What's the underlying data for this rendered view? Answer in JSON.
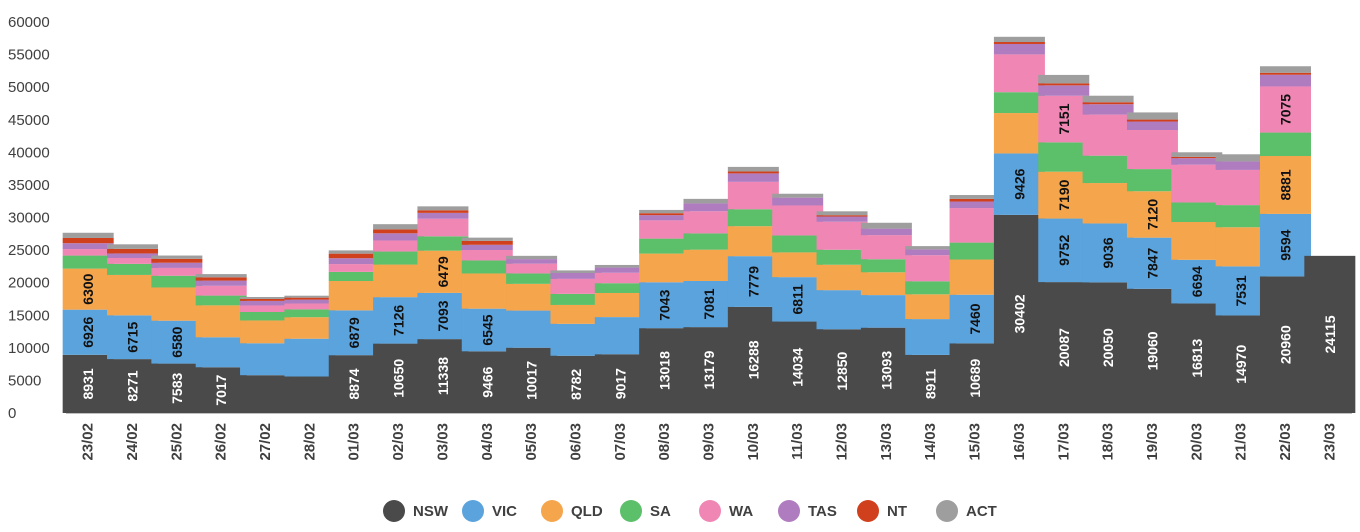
{
  "chart_data": {
    "type": "bar",
    "stacked": true,
    "ylim": [
      0,
      60000
    ],
    "yticks": [
      0,
      5000,
      10000,
      15000,
      20000,
      25000,
      30000,
      35000,
      40000,
      45000,
      50000,
      55000,
      60000
    ],
    "grid": false,
    "legend_position": "bottom",
    "categories": [
      "23/02",
      "24/02",
      "25/02",
      "26/02",
      "27/02",
      "28/02",
      "01/03",
      "02/03",
      "03/03",
      "04/03",
      "05/03",
      "06/03",
      "07/03",
      "08/03",
      "09/03",
      "10/03",
      "11/03",
      "12/03",
      "13/03",
      "14/03",
      "15/03",
      "16/03",
      "17/03",
      "18/03",
      "19/03",
      "20/03",
      "21/03",
      "22/03",
      "23/03"
    ],
    "series": [
      {
        "name": "NSW",
        "color": "#4a4a4a",
        "label_color": "#ffffff",
        "values": [
          8931,
          8271,
          7583,
          7017,
          5800,
          5600,
          8874,
          10650,
          11338,
          9466,
          10017,
          8782,
          9017,
          13018,
          13179,
          16288,
          14034,
          12850,
          13093,
          8911,
          10689,
          30402,
          20087,
          20050,
          19060,
          16813,
          14970,
          20960,
          24115
        ],
        "labels": [
          8931,
          8271,
          7583,
          7017,
          null,
          null,
          8874,
          10650,
          11338,
          9466,
          10017,
          8782,
          9017,
          13018,
          13179,
          16288,
          14034,
          12850,
          13093,
          8911,
          10689,
          30402,
          20087,
          20050,
          19060,
          16813,
          14970,
          20960,
          24115
        ]
      },
      {
        "name": "VIC",
        "color": "#5ba3dc",
        "label_color": "#111111",
        "values": [
          6926,
          6715,
          6580,
          4600,
          4900,
          5800,
          6879,
          7126,
          7093,
          6545,
          5700,
          4900,
          5700,
          7043,
          7081,
          7779,
          6811,
          6000,
          5000,
          5500,
          7460,
          9426,
          9752,
          9036,
          7847,
          6694,
          7531,
          9594,
          0
        ],
        "labels": [
          6926,
          6715,
          6580,
          null,
          null,
          null,
          6879,
          7126,
          7093,
          6545,
          null,
          null,
          null,
          7043,
          7081,
          7779,
          6811,
          null,
          null,
          null,
          7460,
          9426,
          9752,
          9036,
          7847,
          6694,
          7531,
          9594,
          null
        ]
      },
      {
        "name": "QLD",
        "color": "#f5a54c",
        "label_color": "#111111",
        "values": [
          6300,
          6200,
          5100,
          4900,
          3500,
          3300,
          4500,
          5000,
          6479,
          5400,
          4100,
          2900,
          3700,
          4400,
          4800,
          4600,
          3800,
          3900,
          3500,
          3800,
          5400,
          6200,
          7190,
          6200,
          7120,
          5800,
          6000,
          8881,
          0
        ],
        "labels": [
          6300,
          null,
          null,
          null,
          null,
          null,
          null,
          null,
          6479,
          null,
          null,
          null,
          null,
          null,
          null,
          null,
          null,
          null,
          null,
          null,
          null,
          null,
          7190,
          null,
          7120,
          null,
          null,
          8881,
          null
        ]
      },
      {
        "name": "SA",
        "color": "#5cbf6a",
        "label_color": "#111111",
        "values": [
          2000,
          1700,
          1800,
          1500,
          1300,
          1200,
          1400,
          2000,
          2200,
          2000,
          1600,
          1700,
          1500,
          2300,
          2500,
          2600,
          2600,
          2300,
          2000,
          2000,
          2600,
          3200,
          4500,
          4200,
          3400,
          3000,
          3400,
          3600,
          0
        ],
        "labels": [
          null,
          null,
          null,
          null,
          null,
          null,
          null,
          null,
          null,
          null,
          null,
          null,
          null,
          null,
          null,
          null,
          null,
          null,
          null,
          null,
          null,
          null,
          null,
          null,
          null,
          null,
          null,
          null,
          null
        ]
      },
      {
        "name": "WA",
        "color": "#f086b3",
        "label_color": "#111111",
        "values": [
          1000,
          900,
          1200,
          1500,
          1000,
          900,
          1200,
          1700,
          2700,
          1600,
          1500,
          2300,
          1600,
          2800,
          3400,
          4200,
          4600,
          4300,
          3700,
          4000,
          5300,
          5800,
          7151,
          6300,
          6000,
          5800,
          5400,
          7075,
          0
        ],
        "labels": [
          null,
          null,
          null,
          null,
          null,
          null,
          null,
          null,
          null,
          null,
          null,
          null,
          null,
          null,
          null,
          null,
          null,
          null,
          null,
          null,
          null,
          null,
          7151,
          null,
          null,
          null,
          null,
          7075,
          null
        ]
      },
      {
        "name": "TAS",
        "color": "#b07cc0",
        "label_color": "#111111",
        "values": [
          900,
          700,
          800,
          800,
          700,
          600,
          900,
          1100,
          900,
          800,
          700,
          900,
          800,
          800,
          1200,
          1300,
          1200,
          800,
          1000,
          900,
          1000,
          1600,
          1600,
          1600,
          1300,
          1000,
          1300,
          1800,
          0
        ],
        "labels": [
          null,
          null,
          null,
          null,
          null,
          null,
          null,
          null,
          null,
          null,
          null,
          null,
          null,
          null,
          null,
          null,
          null,
          null,
          null,
          null,
          null,
          null,
          null,
          null,
          null,
          null,
          null,
          null,
          null
        ]
      },
      {
        "name": "NT",
        "color": "#d0401c",
        "label_color": "#ffffff",
        "values": [
          800,
          700,
          600,
          500,
          300,
          300,
          700,
          600,
          400,
          600,
          0,
          0,
          0,
          300,
          0,
          300,
          0,
          200,
          0,
          0,
          400,
          300,
          300,
          300,
          300,
          200,
          0,
          300,
          0
        ],
        "labels": [
          null,
          null,
          null,
          null,
          null,
          null,
          null,
          null,
          null,
          null,
          null,
          null,
          null,
          null,
          null,
          null,
          null,
          null,
          null,
          null,
          null,
          null,
          null,
          null,
          null,
          null,
          null,
          null,
          null
        ]
      },
      {
        "name": "ACT",
        "color": "#9e9e9e",
        "label_color": "#111111",
        "values": [
          800,
          700,
          500,
          500,
          300,
          300,
          500,
          800,
          600,
          500,
          500,
          400,
          400,
          500,
          700,
          700,
          600,
          600,
          900,
          500,
          600,
          800,
          1300,
          1000,
          1100,
          700,
          1100,
          1000,
          0
        ],
        "labels": [
          null,
          null,
          null,
          null,
          null,
          null,
          null,
          null,
          null,
          null,
          null,
          null,
          null,
          null,
          null,
          null,
          null,
          null,
          null,
          null,
          null,
          null,
          null,
          null,
          null,
          null,
          null,
          null,
          null
        ]
      }
    ]
  },
  "legend": [
    {
      "label": "NSW",
      "color": "#4a4a4a"
    },
    {
      "label": "VIC",
      "color": "#5ba3dc"
    },
    {
      "label": "QLD",
      "color": "#f5a54c"
    },
    {
      "label": "SA",
      "color": "#5cbf6a"
    },
    {
      "label": "WA",
      "color": "#f086b3"
    },
    {
      "label": "TAS",
      "color": "#b07cc0"
    },
    {
      "label": "NT",
      "color": "#d0401c"
    },
    {
      "label": "ACT",
      "color": "#9e9e9e"
    }
  ]
}
